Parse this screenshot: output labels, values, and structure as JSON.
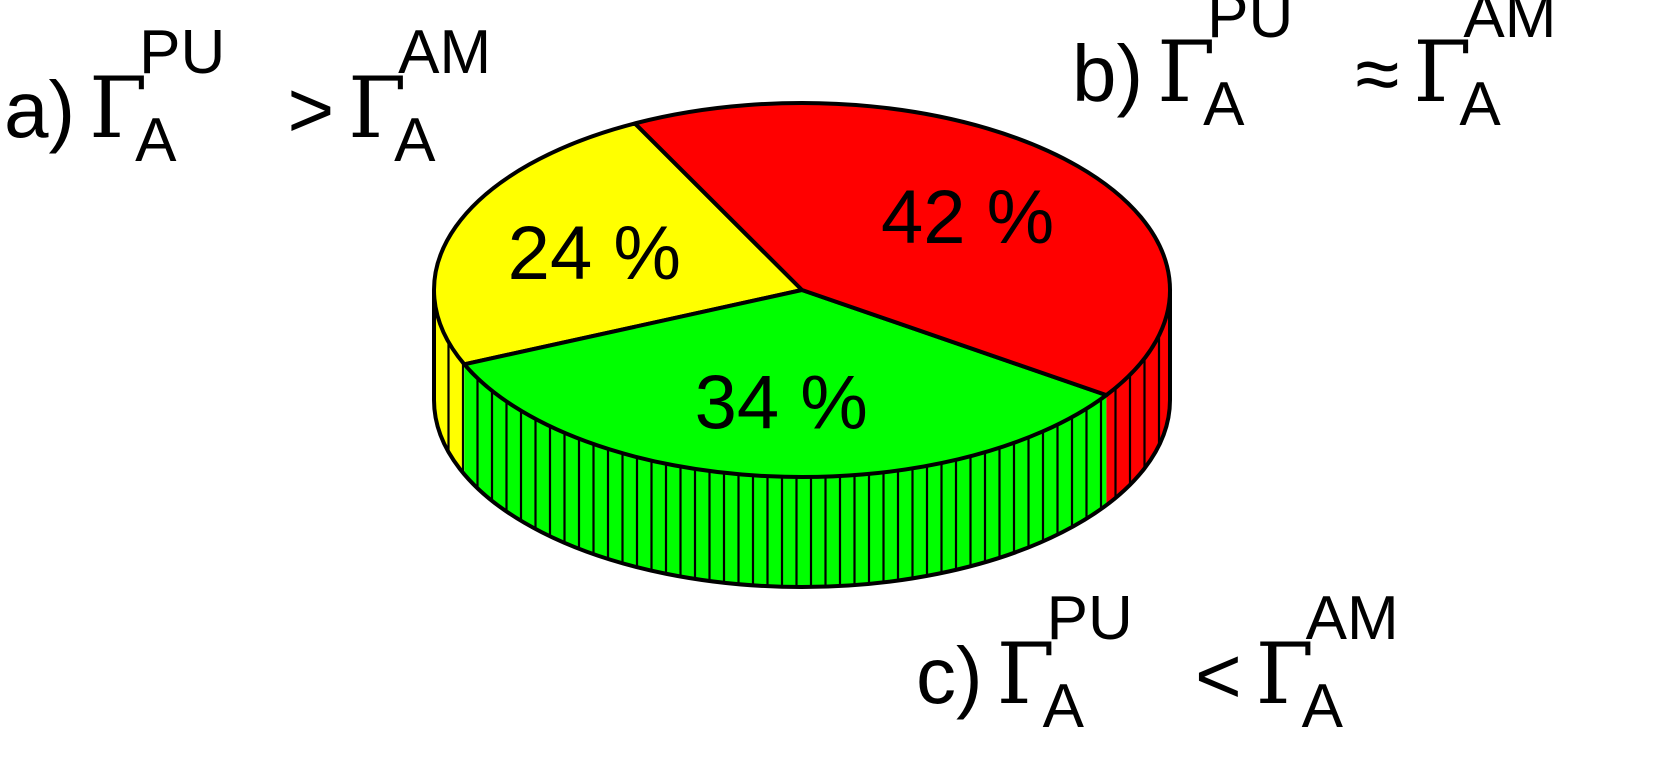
{
  "chart_data": {
    "type": "pie",
    "style": "3d",
    "slices": [
      {
        "key": "a",
        "value": 24,
        "label": "24 %",
        "color": "#ffff00"
      },
      {
        "key": "b",
        "value": 34,
        "label": "34 %",
        "color": "#00ff00"
      },
      {
        "key": "c",
        "value": 42,
        "label": "42 %",
        "color": "#ff0000"
      }
    ],
    "categories": {
      "a": {
        "letter": "a)",
        "left_sup": "PU",
        "left_sub": "A",
        "relation": ">",
        "right_sup": "AM",
        "right_sub": "A"
      },
      "b": {
        "letter": "b)",
        "left_sup": "PU",
        "left_sub": "A",
        "relation": "≈",
        "right_sup": "AM",
        "right_sub": "A"
      },
      "c": {
        "letter": "c)",
        "left_sup": "PU",
        "left_sub": "A",
        "relation": "<",
        "right_sup": "AM",
        "right_sub": "A"
      }
    },
    "symbol": "Γ",
    "outline_color": "#000000"
  }
}
